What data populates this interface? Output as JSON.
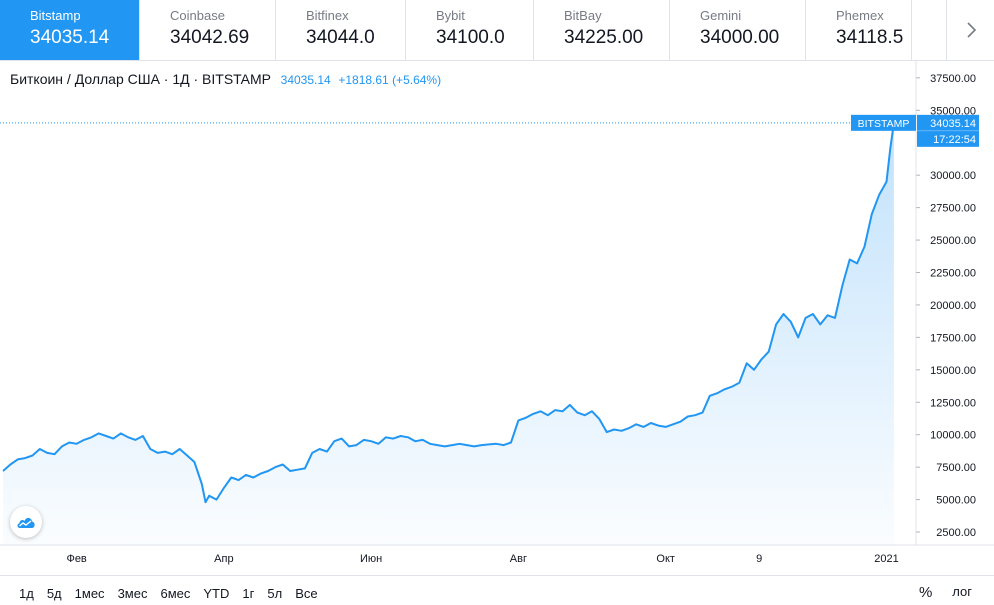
{
  "exchanges": [
    {
      "name": "Bitstamp",
      "price": "34035.14",
      "active": true
    },
    {
      "name": "Coinbase",
      "price": "34042.69"
    },
    {
      "name": "Bitfinex",
      "price": "34044.0"
    },
    {
      "name": "Bybit",
      "price": "34100.0"
    },
    {
      "name": "BitBay",
      "price": "34225.00"
    },
    {
      "name": "Gemini",
      "price": "34000.00"
    },
    {
      "name": "Phemex",
      "price": "34118.5"
    }
  ],
  "tabs_next_icon": "chevron-right-icon",
  "header": {
    "symbol": "Биткоин / Доллар США · 1Д · BITSTAMP",
    "last": "34035.14",
    "change": "+1818.61 (+5.64%)"
  },
  "chart_data": {
    "type": "area",
    "title": "Биткоин / Доллар США · 1Д · BITSTAMP",
    "x_ticks": [
      {
        "label": "Фев",
        "month": 1
      },
      {
        "label": "Апр",
        "month": 3
      },
      {
        "label": "Июн",
        "month": 5
      },
      {
        "label": "Авг",
        "month": 7
      },
      {
        "label": "Окт",
        "month": 9
      },
      {
        "label": "9",
        "month": 10.27
      },
      {
        "label": "2021",
        "month": 12
      }
    ],
    "y_ticks": [
      "2500.00",
      "5000.00",
      "7500.00",
      "10000.00",
      "12500.00",
      "15000.00",
      "17500.00",
      "20000.00",
      "22500.00",
      "25000.00",
      "27500.00",
      "30000.00",
      "35000.00",
      "37500.00"
    ],
    "ylim": [
      1500,
      38800
    ],
    "xlim": [
      0,
      12.4
    ],
    "x_unit": "months since 2020-01-01",
    "series": [
      {
        "color": "#2196f3",
        "points": [
          [
            0.0,
            7200
          ],
          [
            0.1,
            7700
          ],
          [
            0.2,
            8100
          ],
          [
            0.3,
            8200
          ],
          [
            0.4,
            8400
          ],
          [
            0.5,
            8900
          ],
          [
            0.6,
            8600
          ],
          [
            0.7,
            8500
          ],
          [
            0.8,
            9100
          ],
          [
            0.9,
            9400
          ],
          [
            1.0,
            9300
          ],
          [
            1.1,
            9600
          ],
          [
            1.2,
            9800
          ],
          [
            1.3,
            10100
          ],
          [
            1.4,
            9900
          ],
          [
            1.5,
            9700
          ],
          [
            1.6,
            10100
          ],
          [
            1.7,
            9800
          ],
          [
            1.8,
            9600
          ],
          [
            1.9,
            9900
          ],
          [
            2.0,
            8900
          ],
          [
            2.1,
            8600
          ],
          [
            2.2,
            8700
          ],
          [
            2.3,
            8500
          ],
          [
            2.4,
            8900
          ],
          [
            2.5,
            8400
          ],
          [
            2.6,
            7900
          ],
          [
            2.7,
            6200
          ],
          [
            2.75,
            4800
          ],
          [
            2.8,
            5300
          ],
          [
            2.9,
            5000
          ],
          [
            3.0,
            5900
          ],
          [
            3.1,
            6700
          ],
          [
            3.2,
            6500
          ],
          [
            3.3,
            6900
          ],
          [
            3.4,
            6700
          ],
          [
            3.5,
            7000
          ],
          [
            3.6,
            7200
          ],
          [
            3.7,
            7500
          ],
          [
            3.8,
            7700
          ],
          [
            3.9,
            7200
          ],
          [
            4.0,
            7300
          ],
          [
            4.1,
            7400
          ],
          [
            4.2,
            8600
          ],
          [
            4.3,
            8900
          ],
          [
            4.4,
            8700
          ],
          [
            4.5,
            9500
          ],
          [
            4.6,
            9700
          ],
          [
            4.7,
            9100
          ],
          [
            4.8,
            9200
          ],
          [
            4.9,
            9600
          ],
          [
            5.0,
            9500
          ],
          [
            5.1,
            9300
          ],
          [
            5.2,
            9800
          ],
          [
            5.3,
            9700
          ],
          [
            5.4,
            9900
          ],
          [
            5.5,
            9800
          ],
          [
            5.6,
            9500
          ],
          [
            5.7,
            9600
          ],
          [
            5.8,
            9300
          ],
          [
            5.9,
            9200
          ],
          [
            6.0,
            9100
          ],
          [
            6.1,
            9200
          ],
          [
            6.2,
            9300
          ],
          [
            6.3,
            9200
          ],
          [
            6.4,
            9100
          ],
          [
            6.5,
            9200
          ],
          [
            6.6,
            9250
          ],
          [
            6.7,
            9300
          ],
          [
            6.8,
            9200
          ],
          [
            6.9,
            9400
          ],
          [
            7.0,
            11100
          ],
          [
            7.1,
            11300
          ],
          [
            7.2,
            11600
          ],
          [
            7.3,
            11800
          ],
          [
            7.4,
            11500
          ],
          [
            7.5,
            11900
          ],
          [
            7.6,
            11800
          ],
          [
            7.7,
            12300
          ],
          [
            7.8,
            11700
          ],
          [
            7.9,
            11500
          ],
          [
            8.0,
            11800
          ],
          [
            8.1,
            11200
          ],
          [
            8.2,
            10200
          ],
          [
            8.3,
            10400
          ],
          [
            8.4,
            10300
          ],
          [
            8.5,
            10500
          ],
          [
            8.6,
            10800
          ],
          [
            8.7,
            10600
          ],
          [
            8.8,
            10900
          ],
          [
            8.9,
            10700
          ],
          [
            9.0,
            10600
          ],
          [
            9.1,
            10800
          ],
          [
            9.2,
            11000
          ],
          [
            9.3,
            11400
          ],
          [
            9.4,
            11500
          ],
          [
            9.5,
            11700
          ],
          [
            9.6,
            13000
          ],
          [
            9.7,
            13200
          ],
          [
            9.8,
            13500
          ],
          [
            9.9,
            13700
          ],
          [
            10.0,
            14000
          ],
          [
            10.1,
            15500
          ],
          [
            10.2,
            15000
          ],
          [
            10.3,
            15800
          ],
          [
            10.4,
            16400
          ],
          [
            10.5,
            18500
          ],
          [
            10.6,
            19300
          ],
          [
            10.7,
            18700
          ],
          [
            10.8,
            17500
          ],
          [
            10.9,
            19000
          ],
          [
            11.0,
            19300
          ],
          [
            11.1,
            18500
          ],
          [
            11.2,
            19200
          ],
          [
            11.3,
            19000
          ],
          [
            11.4,
            21500
          ],
          [
            11.5,
            23500
          ],
          [
            11.6,
            23200
          ],
          [
            11.7,
            24500
          ],
          [
            11.8,
            27000
          ],
          [
            11.9,
            28500
          ],
          [
            12.0,
            29500
          ],
          [
            12.05,
            32000
          ],
          [
            12.1,
            34035
          ]
        ]
      }
    ],
    "last_label": {
      "exchange": "BITSTAMP",
      "price": "34035.14",
      "countdown": "17:22:54"
    }
  },
  "logo_icon": "tradingview-cloud-icon",
  "ranges": [
    "1д",
    "5д",
    "1мес",
    "3мес",
    "6мес",
    "YTD",
    "1г",
    "5л",
    "Все"
  ],
  "toolbar_right": {
    "percent": "%",
    "log": "лог"
  }
}
